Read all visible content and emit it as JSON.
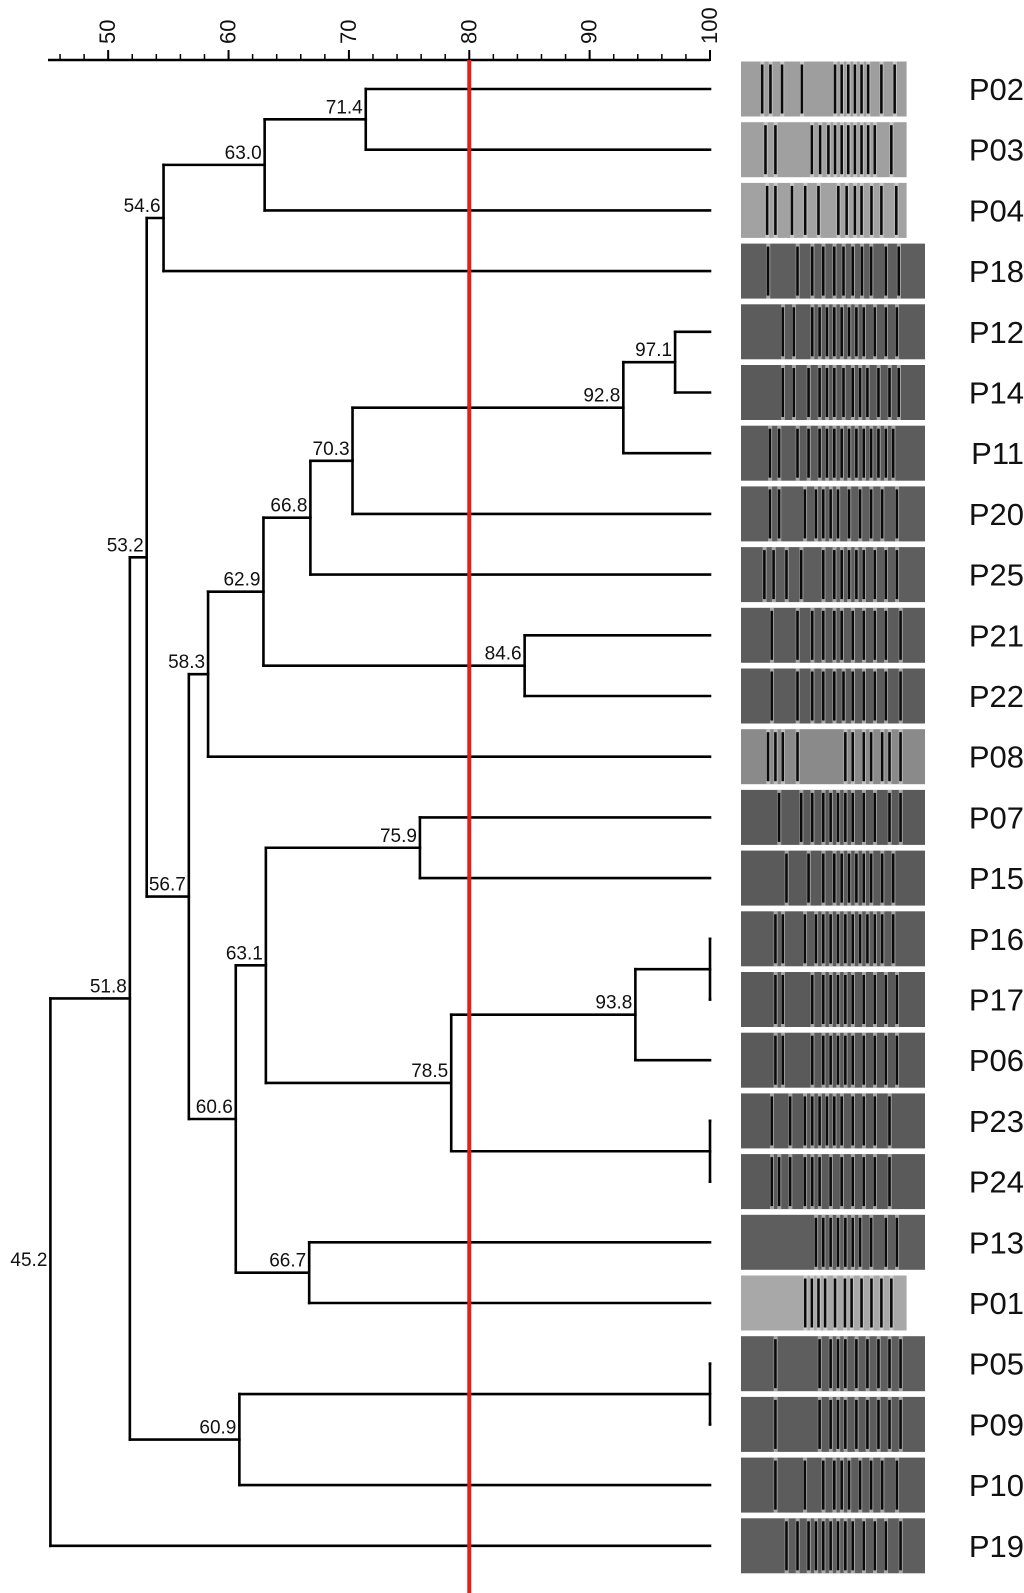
{
  "scale": {
    "min": 45,
    "max": 100,
    "major_ticks": [
      50,
      60,
      70,
      80,
      90,
      100
    ],
    "minor_step": 2
  },
  "cutoff": {
    "value": 80,
    "color": "#e0201a"
  },
  "leaves": [
    "P02",
    "P03",
    "P04",
    "P18",
    "P12",
    "P14",
    "P11",
    "P20",
    "P25",
    "P21",
    "P22",
    "P08",
    "P07",
    "P15",
    "P16",
    "P17",
    "P06",
    "P23",
    "P24",
    "P13",
    "P01",
    "P05",
    "P09",
    "P10",
    "P19"
  ],
  "fingerprints": {
    "P02": {
      "bg": "#9e9e9e",
      "width": 0.9,
      "bands": [
        0.12,
        0.17,
        0.24,
        0.36,
        0.56,
        0.6,
        0.64,
        0.68,
        0.72,
        0.76,
        0.84,
        0.92
      ]
    },
    "P03": {
      "bg": "#a0a0a0",
      "width": 0.9,
      "bands": [
        0.14,
        0.2,
        0.42,
        0.47,
        0.52,
        0.56,
        0.6,
        0.64,
        0.68,
        0.72,
        0.76,
        0.8,
        0.9
      ]
    },
    "P04": {
      "bg": "#a2a2a2",
      "width": 0.9,
      "bands": [
        0.15,
        0.2,
        0.3,
        0.38,
        0.46,
        0.58,
        0.63,
        0.68,
        0.72,
        0.78,
        0.84,
        0.93
      ]
    },
    "P18": {
      "bg": "#5e5e5e",
      "width": 1.0,
      "bands": [
        0.14,
        0.3,
        0.38,
        0.44,
        0.5,
        0.55,
        0.6,
        0.65,
        0.7,
        0.78,
        0.85
      ]
    },
    "P12": {
      "bg": "#5c5c5c",
      "width": 1.0,
      "bands": [
        0.22,
        0.28,
        0.38,
        0.42,
        0.46,
        0.5,
        0.54,
        0.58,
        0.62,
        0.66,
        0.72,
        0.78,
        0.84
      ]
    },
    "P14": {
      "bg": "#5a5a5a",
      "width": 1.0,
      "bands": [
        0.22,
        0.28,
        0.36,
        0.42,
        0.46,
        0.5,
        0.55,
        0.6,
        0.64,
        0.68,
        0.74,
        0.8,
        0.85
      ]
    },
    "P11": {
      "bg": "#5c5c5c",
      "width": 1.0,
      "bands": [
        0.15,
        0.2,
        0.3,
        0.36,
        0.42,
        0.46,
        0.5,
        0.54,
        0.58,
        0.62,
        0.66,
        0.7,
        0.74,
        0.78,
        0.82
      ]
    },
    "P20": {
      "bg": "#5e5e5e",
      "width": 1.0,
      "bands": [
        0.15,
        0.2,
        0.34,
        0.4,
        0.44,
        0.48,
        0.52,
        0.58,
        0.64,
        0.7,
        0.76,
        0.84
      ]
    },
    "P25": {
      "bg": "#5e5e5e",
      "width": 1.0,
      "bands": [
        0.12,
        0.17,
        0.24,
        0.32,
        0.44,
        0.5,
        0.54,
        0.58,
        0.62,
        0.66,
        0.72,
        0.78,
        0.84
      ]
    },
    "P21": {
      "bg": "#5c5c5c",
      "width": 1.0,
      "bands": [
        0.16,
        0.3,
        0.38,
        0.44,
        0.5,
        0.54,
        0.6,
        0.66,
        0.72,
        0.78,
        0.86
      ]
    },
    "P22": {
      "bg": "#5c5c5c",
      "width": 1.0,
      "bands": [
        0.16,
        0.3,
        0.38,
        0.44,
        0.5,
        0.55,
        0.6,
        0.66,
        0.72,
        0.78,
        0.86
      ]
    },
    "P08": {
      "bg": "#8a8a8a",
      "width": 1.0,
      "bands": [
        0.14,
        0.18,
        0.22,
        0.3,
        0.56,
        0.6,
        0.66,
        0.7,
        0.76,
        0.8,
        0.86
      ]
    },
    "P07": {
      "bg": "#5a5a5a",
      "width": 1.0,
      "bands": [
        0.2,
        0.32,
        0.38,
        0.44,
        0.48,
        0.52,
        0.56,
        0.6,
        0.66,
        0.72,
        0.8,
        0.86
      ]
    },
    "P15": {
      "bg": "#5a5a5a",
      "width": 1.0,
      "bands": [
        0.24,
        0.36,
        0.44,
        0.5,
        0.54,
        0.58,
        0.62,
        0.66,
        0.7,
        0.76,
        0.82
      ]
    },
    "P16": {
      "bg": "#5c5c5c",
      "width": 1.0,
      "bands": [
        0.18,
        0.22,
        0.34,
        0.4,
        0.44,
        0.48,
        0.52,
        0.56,
        0.6,
        0.64,
        0.68,
        0.72,
        0.76,
        0.82
      ]
    },
    "P17": {
      "bg": "#5a5a5a",
      "width": 1.0,
      "bands": [
        0.18,
        0.22,
        0.38,
        0.44,
        0.48,
        0.52,
        0.56,
        0.6,
        0.66,
        0.72,
        0.78,
        0.84
      ]
    },
    "P06": {
      "bg": "#5a5a5a",
      "width": 1.0,
      "bands": [
        0.18,
        0.22,
        0.38,
        0.44,
        0.48,
        0.52,
        0.56,
        0.6,
        0.66,
        0.72,
        0.78,
        0.84
      ]
    },
    "P23": {
      "bg": "#5a5a5a",
      "width": 1.0,
      "bands": [
        0.16,
        0.26,
        0.34,
        0.38,
        0.42,
        0.46,
        0.5,
        0.54,
        0.6,
        0.66,
        0.72,
        0.8
      ]
    },
    "P24": {
      "bg": "#5a5a5a",
      "width": 1.0,
      "bands": [
        0.16,
        0.2,
        0.26,
        0.34,
        0.38,
        0.42,
        0.48,
        0.54,
        0.6,
        0.66,
        0.72,
        0.8
      ]
    },
    "P13": {
      "bg": "#5e5e5e",
      "width": 1.0,
      "bands": [
        0.4,
        0.44,
        0.48,
        0.52,
        0.56,
        0.6,
        0.64,
        0.7,
        0.78,
        0.84
      ]
    },
    "P01": {
      "bg": "#a8a8a8",
      "width": 0.9,
      "bands": [
        0.38,
        0.42,
        0.46,
        0.5,
        0.56,
        0.62,
        0.66,
        0.72,
        0.78,
        0.84,
        0.9
      ]
    },
    "P05": {
      "bg": "#5e5e5e",
      "width": 1.0,
      "bands": [
        0.18,
        0.42,
        0.48,
        0.52,
        0.56,
        0.62,
        0.68,
        0.74,
        0.8,
        0.86
      ]
    },
    "P09": {
      "bg": "#5c5c5c",
      "width": 1.0,
      "bands": [
        0.18,
        0.42,
        0.48,
        0.52,
        0.56,
        0.62,
        0.68,
        0.74,
        0.8,
        0.86
      ]
    },
    "P10": {
      "bg": "#5c5c5c",
      "width": 1.0,
      "bands": [
        0.18,
        0.34,
        0.44,
        0.5,
        0.54,
        0.58,
        0.64,
        0.7,
        0.76,
        0.84
      ]
    },
    "P19": {
      "bg": "#5e5e5e",
      "width": 1.0,
      "bands": [
        0.24,
        0.3,
        0.36,
        0.4,
        0.44,
        0.48,
        0.52,
        0.56,
        0.6,
        0.66,
        0.72,
        0.78,
        0.86
      ]
    }
  },
  "tree": {
    "sim": 45.2,
    "label": "45.2",
    "children": [
      {
        "sim": 51.8,
        "label": "51.8",
        "children": [
          {
            "sim": 53.2,
            "label": "53.2",
            "children": [
              {
                "sim": 54.6,
                "label": "54.6",
                "children": [
                  {
                    "sim": 63.0,
                    "label": "63.0",
                    "children": [
                      {
                        "sim": 71.4,
                        "label": "71.4",
                        "children": [
                          {
                            "leaf": "P02"
                          },
                          {
                            "leaf": "P03"
                          }
                        ]
                      },
                      {
                        "leaf": "P04"
                      }
                    ]
                  },
                  {
                    "leaf": "P18"
                  }
                ]
              },
              {
                "sim": 56.7,
                "label": "56.7",
                "children": [
                  {
                    "sim": 58.3,
                    "label": "58.3",
                    "children": [
                      {
                        "sim": 62.9,
                        "label": "62.9",
                        "children": [
                          {
                            "sim": 66.8,
                            "label": "66.8",
                            "children": [
                              {
                                "sim": 70.3,
                                "label": "70.3",
                                "children": [
                                  {
                                    "sim": 92.8,
                                    "label": "92.8",
                                    "children": [
                                      {
                                        "sim": 97.1,
                                        "label": "97.1",
                                        "children": [
                                          {
                                            "leaf": "P12"
                                          },
                                          {
                                            "leaf": "P14"
                                          }
                                        ]
                                      },
                                      {
                                        "leaf": "P11"
                                      }
                                    ]
                                  },
                                  {
                                    "leaf": "P20"
                                  }
                                ]
                              },
                              {
                                "leaf": "P25"
                              }
                            ]
                          },
                          {
                            "sim": 84.6,
                            "label": "84.6",
                            "children": [
                              {
                                "leaf": "P21"
                              },
                              {
                                "leaf": "P22"
                              }
                            ]
                          }
                        ]
                      },
                      {
                        "leaf": "P08"
                      }
                    ]
                  },
                  {
                    "sim": 60.6,
                    "label": "60.6",
                    "children": [
                      {
                        "sim": 63.1,
                        "label": "63.1",
                        "children": [
                          {
                            "sim": 75.9,
                            "label": "75.9",
                            "children": [
                              {
                                "leaf": "P07"
                              },
                              {
                                "leaf": "P15"
                              }
                            ]
                          },
                          {
                            "sim": 78.5,
                            "label": "78.5",
                            "children": [
                              {
                                "sim": 93.8,
                                "label": "93.8",
                                "children": [
                                  {
                                    "sim": 100,
                                    "children": [
                                      {
                                        "leaf": "P16"
                                      },
                                      {
                                        "leaf": "P17"
                                      }
                                    ]
                                  },
                                  {
                                    "leaf": "P06"
                                  }
                                ]
                              },
                              {
                                "sim": 100,
                                "children": [
                                  {
                                    "leaf": "P23"
                                  },
                                  {
                                    "leaf": "P24"
                                  }
                                ]
                              }
                            ]
                          }
                        ]
                      },
                      {
                        "sim": 66.7,
                        "label": "66.7",
                        "children": [
                          {
                            "leaf": "P13"
                          },
                          {
                            "leaf": "P01"
                          }
                        ]
                      }
                    ]
                  }
                ]
              }
            ]
          },
          {
            "sim": 60.9,
            "label": "60.9",
            "children": [
              {
                "sim": 100,
                "children": [
                  {
                    "leaf": "P05"
                  },
                  {
                    "leaf": "P09"
                  }
                ]
              },
              {
                "leaf": "P10"
              }
            ]
          }
        ]
      },
      {
        "leaf": "P19"
      }
    ]
  }
}
